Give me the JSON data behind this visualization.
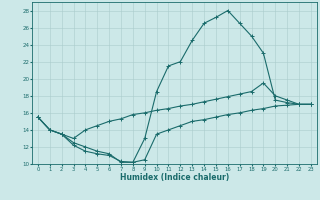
{
  "xlabel": "Humidex (Indice chaleur)",
  "bg_color": "#cce8e8",
  "line_color": "#1a6b6b",
  "grid_color": "#aacccc",
  "xlim": [
    -0.5,
    23.5
  ],
  "ylim": [
    10,
    29
  ],
  "xticks": [
    0,
    1,
    2,
    3,
    4,
    5,
    6,
    7,
    8,
    9,
    10,
    11,
    12,
    13,
    14,
    15,
    16,
    17,
    18,
    19,
    20,
    21,
    22,
    23
  ],
  "yticks": [
    10,
    12,
    14,
    16,
    18,
    20,
    22,
    24,
    26,
    28
  ],
  "line1_x": [
    0,
    1,
    2,
    3,
    4,
    5,
    6,
    7,
    8,
    9,
    10,
    11,
    12,
    13,
    14,
    15,
    16,
    17,
    18,
    19,
    20,
    21,
    22,
    23
  ],
  "line1_y": [
    15.5,
    14.0,
    13.5,
    12.5,
    12.0,
    11.5,
    11.2,
    10.2,
    10.2,
    13.0,
    18.5,
    21.5,
    22.0,
    24.5,
    26.5,
    27.2,
    28.0,
    26.5,
    25.0,
    23.0,
    17.5,
    17.2,
    17.0,
    17.0
  ],
  "line2_x": [
    0,
    1,
    2,
    3,
    4,
    5,
    6,
    7,
    8,
    9,
    10,
    11,
    12,
    13,
    14,
    15,
    16,
    17,
    18,
    19,
    20,
    21,
    22,
    23
  ],
  "line2_y": [
    15.5,
    14.0,
    13.5,
    13.0,
    14.0,
    14.5,
    15.0,
    15.3,
    15.8,
    16.0,
    16.3,
    16.5,
    16.8,
    17.0,
    17.3,
    17.6,
    17.9,
    18.2,
    18.5,
    19.5,
    18.0,
    17.5,
    17.0,
    17.0
  ],
  "line3_x": [
    0,
    1,
    2,
    3,
    4,
    5,
    6,
    7,
    8,
    9,
    10,
    11,
    12,
    13,
    14,
    15,
    16,
    17,
    18,
    19,
    20,
    21,
    22,
    23
  ],
  "line3_y": [
    15.5,
    14.0,
    13.5,
    12.2,
    11.5,
    11.2,
    11.0,
    10.3,
    10.2,
    10.5,
    13.5,
    14.0,
    14.5,
    15.0,
    15.2,
    15.5,
    15.8,
    16.0,
    16.3,
    16.5,
    16.8,
    16.9,
    17.0,
    17.0
  ]
}
